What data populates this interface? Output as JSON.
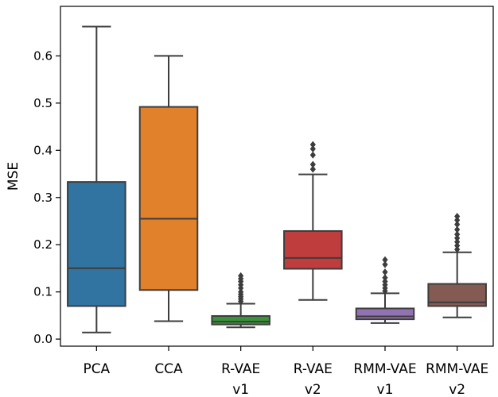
{
  "chart_data": {
    "type": "boxplot",
    "title": "",
    "xlabel": "",
    "ylabel": "MSE",
    "ylim": [
      -0.015,
      0.705
    ],
    "yticks": [
      "0.0",
      "0.1",
      "0.2",
      "0.3",
      "0.4",
      "0.5",
      "0.6"
    ],
    "grid": false,
    "categories": [
      {
        "line1": "PCA",
        "line2": "",
        "color": "#3173a1",
        "min": 0.014,
        "q1": 0.07,
        "median": 0.15,
        "q3": 0.333,
        "max": 0.662,
        "outliers": []
      },
      {
        "line1": "CCA",
        "line2": "",
        "color": "#e1812c",
        "min": 0.038,
        "q1": 0.104,
        "median": 0.255,
        "q3": 0.492,
        "max": 0.6,
        "outliers": []
      },
      {
        "line1": "R-VAE",
        "line2": "v1",
        "color": "#3a923a",
        "min": 0.025,
        "q1": 0.031,
        "median": 0.037,
        "q3": 0.049,
        "max": 0.075,
        "outliers": [
          0.08,
          0.085,
          0.09,
          0.095,
          0.1,
          0.108,
          0.115,
          0.122,
          0.128,
          0.134
        ]
      },
      {
        "line1": "R-VAE",
        "line2": "v2",
        "color": "#c03d3e",
        "min": 0.083,
        "q1": 0.149,
        "median": 0.172,
        "q3": 0.229,
        "max": 0.349,
        "outliers": [
          0.36,
          0.37,
          0.39,
          0.403,
          0.412
        ]
      },
      {
        "line1": "RMM-VAE",
        "line2": "v1",
        "color": "#9372b2",
        "min": 0.034,
        "q1": 0.042,
        "median": 0.048,
        "q3": 0.065,
        "max": 0.097,
        "outliers": [
          0.102,
          0.108,
          0.115,
          0.122,
          0.13,
          0.142,
          0.158,
          0.168
        ]
      },
      {
        "line1": "RMM-VAE",
        "line2": "v2",
        "color": "#845b53",
        "min": 0.046,
        "q1": 0.07,
        "median": 0.078,
        "q3": 0.117,
        "max": 0.184,
        "outliers": [
          0.19,
          0.198,
          0.206,
          0.214,
          0.222,
          0.232,
          0.243,
          0.252,
          0.26
        ]
      }
    ]
  }
}
